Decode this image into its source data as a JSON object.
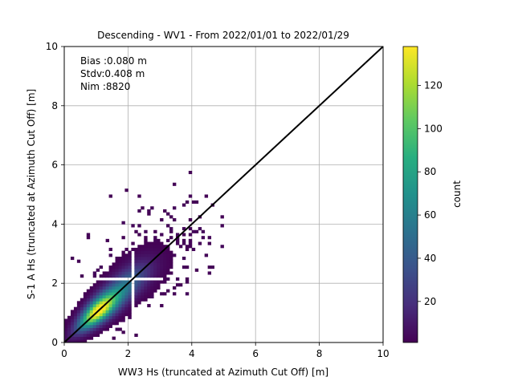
{
  "chart_data": {
    "type": "heatmap",
    "title": "Descending - WV1 - From 2022/01/01 to 2022/01/29",
    "xlabel": "WW3 Hs (truncated at Azimuth Cut Off) [m]",
    "ylabel": "S-1 A Hs (truncated at Azimuth Cut Off) [m]",
    "xlim": [
      0,
      10
    ],
    "ylim": [
      0,
      10
    ],
    "xticks": [
      0,
      2,
      4,
      6,
      8,
      10
    ],
    "yticks": [
      0,
      2,
      4,
      6,
      8,
      10
    ],
    "grid": true,
    "bin_size_m": 0.1,
    "reference_line": {
      "x": [
        0,
        10
      ],
      "y": [
        0,
        10
      ],
      "color": "#000000"
    },
    "stats": {
      "bias": "Bias :0.080 m",
      "stdv": "Stdv:0.408 m",
      "nim": "Nim :8820"
    },
    "colorbar": {
      "label": "count",
      "colormap": "viridis",
      "range": [
        1,
        138
      ],
      "ticks": [
        20,
        40,
        60,
        80,
        100,
        120
      ]
    },
    "peak": {
      "x": 1.0,
      "y": 1.0,
      "count": 138
    },
    "outliers": [
      {
        "x": 1.45,
        "y": 4.95,
        "count": 2
      },
      {
        "x": 1.95,
        "y": 5.15,
        "count": 2
      },
      {
        "x": 3.25,
        "y": 3.95,
        "count": 2
      },
      {
        "x": 2.45,
        "y": 4.55,
        "count": 2
      },
      {
        "x": 3.35,
        "y": 4.25,
        "count": 2
      },
      {
        "x": 0.75,
        "y": 3.55,
        "count": 2
      },
      {
        "x": 0.75,
        "y": 3.65,
        "count": 2
      },
      {
        "x": 3.45,
        "y": 5.35,
        "count": 2
      },
      {
        "x": 3.95,
        "y": 5.75,
        "count": 2
      },
      {
        "x": 3.85,
        "y": 4.75,
        "count": 2
      },
      {
        "x": 4.15,
        "y": 4.75,
        "count": 2
      },
      {
        "x": 4.45,
        "y": 4.95,
        "count": 2
      },
      {
        "x": 4.65,
        "y": 4.65,
        "count": 2
      },
      {
        "x": 4.95,
        "y": 4.25,
        "count": 2
      },
      {
        "x": 4.55,
        "y": 2.55,
        "count": 2
      },
      {
        "x": 3.85,
        "y": 2.05,
        "count": 2
      },
      {
        "x": 4.05,
        "y": 3.65,
        "count": 2
      },
      {
        "x": 4.15,
        "y": 3.75,
        "count": 2
      },
      {
        "x": 3.75,
        "y": 3.35,
        "count": 2
      },
      {
        "x": 3.05,
        "y": 4.15,
        "count": 2
      },
      {
        "x": 2.85,
        "y": 3.15,
        "count": 2
      },
      {
        "x": 0.45,
        "y": 2.75,
        "count": 2
      },
      {
        "x": 0.55,
        "y": 2.25,
        "count": 2
      },
      {
        "x": 1.35,
        "y": 3.45,
        "count": 2
      },
      {
        "x": 1.85,
        "y": 3.55,
        "count": 2
      },
      {
        "x": 2.25,
        "y": 0.25,
        "count": 2
      },
      {
        "x": 1.75,
        "y": 0.45,
        "count": 2
      },
      {
        "x": 1.85,
        "y": 0.35,
        "count": 2
      },
      {
        "x": 1.55,
        "y": 0.15,
        "count": 2
      },
      {
        "x": 0.05,
        "y": 0.35,
        "count": 2
      },
      {
        "x": 3.05,
        "y": 1.25,
        "count": 2
      },
      {
        "x": 3.25,
        "y": 1.75,
        "count": 2
      },
      {
        "x": 2.65,
        "y": 1.25,
        "count": 2
      },
      {
        "x": 0.25,
        "y": 2.85,
        "count": 2
      },
      {
        "x": 3.15,
        "y": 2.05,
        "count": 2
      }
    ]
  }
}
